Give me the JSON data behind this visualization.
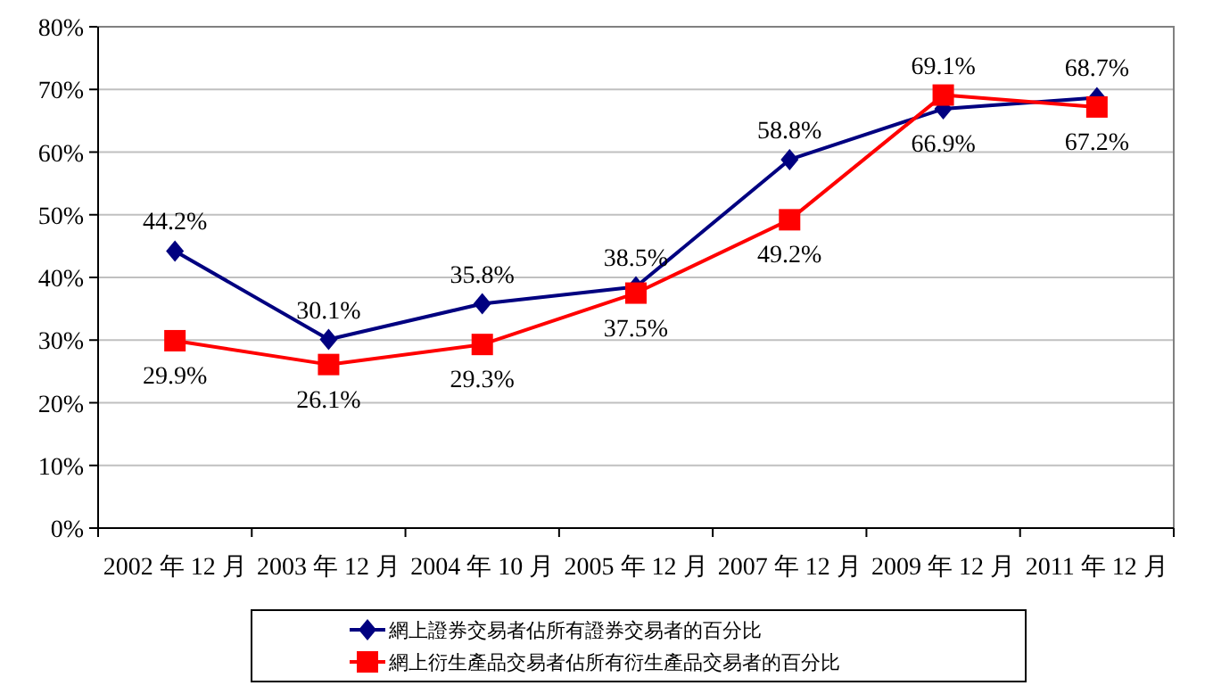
{
  "chart_data": {
    "type": "line",
    "categories": [
      "2002 年 12 月",
      "2003 年 12 月",
      "2004 年 10 月",
      "2005 年 12 月",
      "2007 年 12 月",
      "2009 年 12 月",
      "2011 年 12 月"
    ],
    "series": [
      {
        "name": "網上證券交易者佔所有證券交易者的百分比",
        "color": "#000080",
        "marker": "diamond",
        "values": [
          44.2,
          30.1,
          35.8,
          38.5,
          58.8,
          66.9,
          68.7
        ],
        "value_labels": [
          "44.2%",
          "30.1%",
          "35.8%",
          "38.5%",
          "58.8%",
          "66.9%",
          "68.7%"
        ]
      },
      {
        "name": "網上衍生產品交易者佔所有衍生產品交易者的百分比",
        "color": "#ff0000",
        "marker": "square",
        "values": [
          29.9,
          26.1,
          29.3,
          37.5,
          49.2,
          69.1,
          67.2
        ],
        "value_labels": [
          "29.9%",
          "26.1%",
          "29.3%",
          "37.5%",
          "49.2%",
          "69.1%",
          "67.2%"
        ]
      }
    ],
    "ylim": [
      0,
      80
    ],
    "yticks": [
      {
        "value": 0,
        "label": "0%"
      },
      {
        "value": 10,
        "label": "10%"
      },
      {
        "value": 20,
        "label": "20%"
      },
      {
        "value": 30,
        "label": "30%"
      },
      {
        "value": 40,
        "label": "40%"
      },
      {
        "value": 50,
        "label": "50%"
      },
      {
        "value": 60,
        "label": "60%"
      },
      {
        "value": 70,
        "label": "70%"
      },
      {
        "value": 80,
        "label": "80%"
      }
    ],
    "grid": "y",
    "legend": "bottom",
    "line_style": "solid"
  }
}
